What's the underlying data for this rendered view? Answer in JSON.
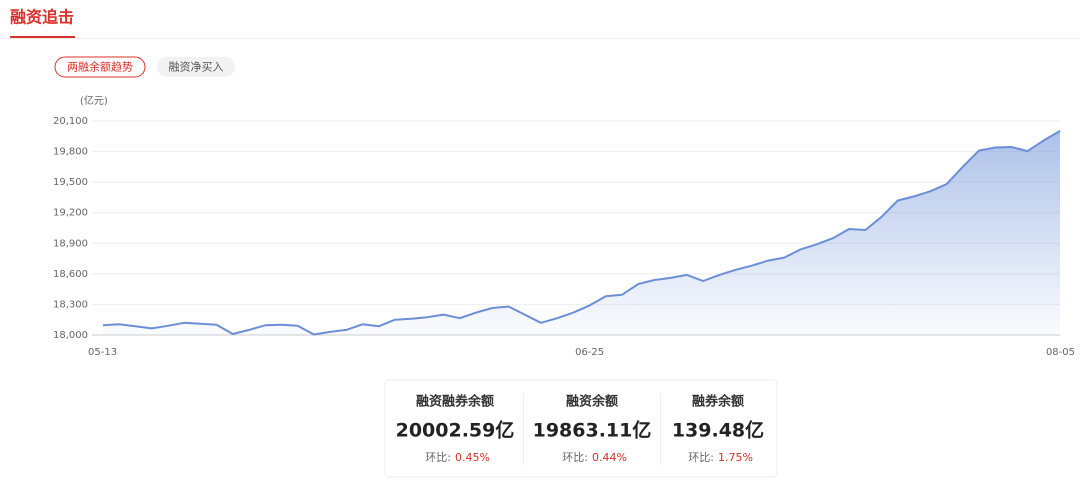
{
  "header": {
    "title": "融资追击"
  },
  "tabs": [
    "两融余额趋势",
    "融资净买入"
  ],
  "chart_data": {
    "type": "area",
    "y_unit": "(亿元)",
    "categories": [
      "05-13",
      null,
      null,
      null,
      null,
      null,
      null,
      null,
      null,
      null,
      null,
      null,
      null,
      null,
      null,
      null,
      null,
      null,
      null,
      null,
      null,
      null,
      null,
      null,
      null,
      null,
      null,
      null,
      null,
      null,
      "06-25",
      null,
      null,
      null,
      null,
      null,
      null,
      null,
      null,
      null,
      null,
      null,
      null,
      null,
      null,
      null,
      null,
      null,
      null,
      null,
      null,
      null,
      null,
      null,
      null,
      null,
      null,
      null,
      null,
      "08-05"
    ],
    "values": [
      18095,
      18105,
      18085,
      18065,
      18090,
      18120,
      18110,
      18100,
      18010,
      18050,
      18095,
      18100,
      18090,
      18005,
      18030,
      18050,
      18105,
      18085,
      18150,
      18160,
      18175,
      18200,
      18165,
      18220,
      18265,
      18280,
      18200,
      18120,
      18165,
      18220,
      18290,
      18380,
      18395,
      18500,
      18540,
      18560,
      18590,
      18530,
      18590,
      18640,
      18680,
      18730,
      18760,
      18840,
      18890,
      18950,
      19040,
      19030,
      19160,
      19320,
      19360,
      19410,
      19480,
      19650,
      19810,
      19840,
      19845,
      19805,
      19910,
      20002.59
    ],
    "color": "#6b8fd6",
    "ylim": [
      18000,
      20100
    ],
    "yticks": [
      {
        "value": 18000,
        "label": "18,000"
      },
      {
        "value": 18300,
        "label": "18,300"
      },
      {
        "value": 18600,
        "label": "18,600"
      },
      {
        "value": 18900,
        "label": "18,900"
      },
      {
        "value": 19200,
        "label": "19,200"
      },
      {
        "value": 19500,
        "label": "19,500"
      },
      {
        "value": 19800,
        "label": "19,800"
      },
      {
        "value": 20100,
        "label": "20,100"
      }
    ],
    "grid": true
  },
  "stats": [
    {
      "label": "融资融券余额",
      "value": "20002.59亿",
      "change_label": "环比:",
      "change": "0.45%"
    },
    {
      "label": "融资余额",
      "value": "19863.11亿",
      "change_label": "环比:",
      "change": "0.44%"
    },
    {
      "label": "融券余额",
      "value": "139.48亿",
      "change_label": "环比:",
      "change": "1.75%"
    }
  ]
}
